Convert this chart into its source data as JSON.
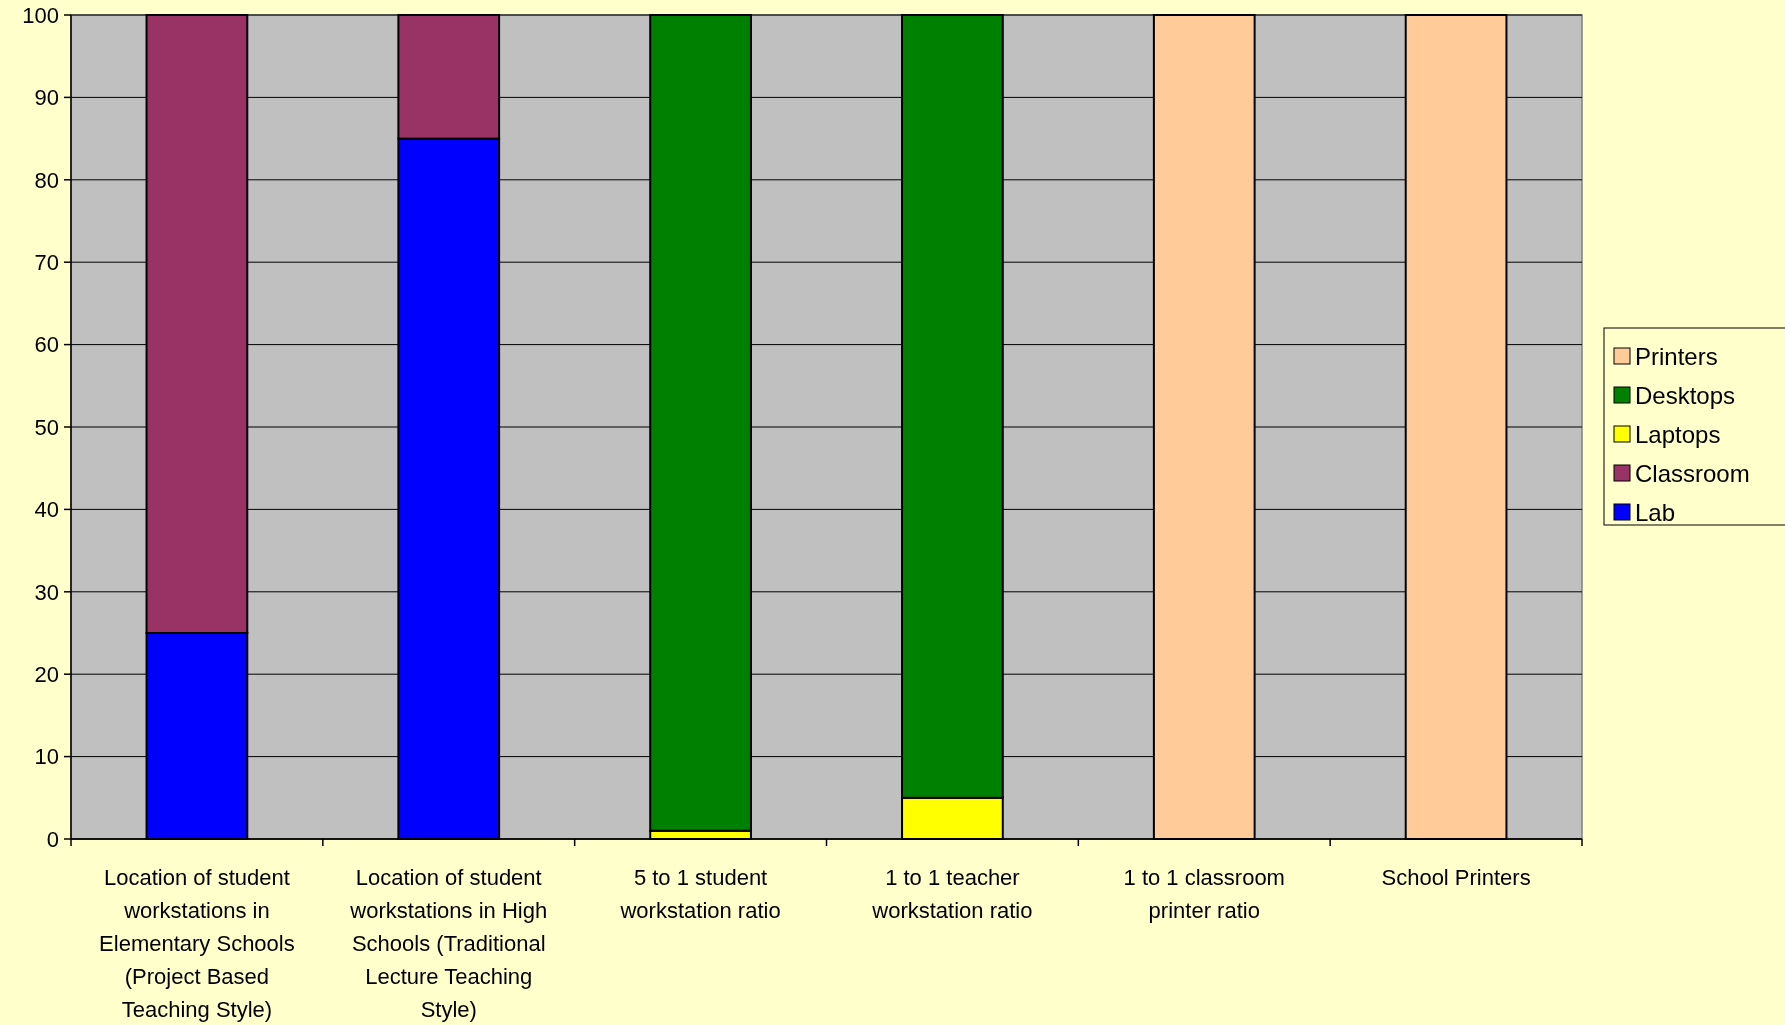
{
  "chart_data": {
    "type": "bar",
    "stacked": true,
    "categories": [
      "Location of student workstations in Elementary Schools (Project Based Teaching Style)",
      "Location of student workstations in High Schools (Traditional Lecture Teaching Style)",
      "5 to 1 student workstation ratio",
      "1 to 1 teacher workstation ratio",
      "1 to 1 classroom printer ratio",
      "School Printers"
    ],
    "series": [
      {
        "name": "Lab",
        "color": "#0000ff",
        "values": [
          25,
          85,
          null,
          null,
          null,
          null
        ]
      },
      {
        "name": "Classroom",
        "color": "#993366",
        "values": [
          75,
          15,
          null,
          null,
          null,
          null
        ]
      },
      {
        "name": "Laptops",
        "color": "#ffff00",
        "values": [
          null,
          null,
          1,
          5,
          null,
          null
        ]
      },
      {
        "name": "Desktops",
        "color": "#008000",
        "values": [
          null,
          null,
          99,
          95,
          null,
          null
        ]
      },
      {
        "name": "Printers",
        "color": "#ffcc99",
        "values": [
          null,
          null,
          null,
          null,
          100,
          100
        ]
      }
    ],
    "ylim": [
      0,
      100
    ],
    "yticks": [
      0,
      10,
      20,
      30,
      40,
      50,
      60,
      70,
      80,
      90,
      100
    ],
    "grid": "y",
    "legend": "right"
  }
}
